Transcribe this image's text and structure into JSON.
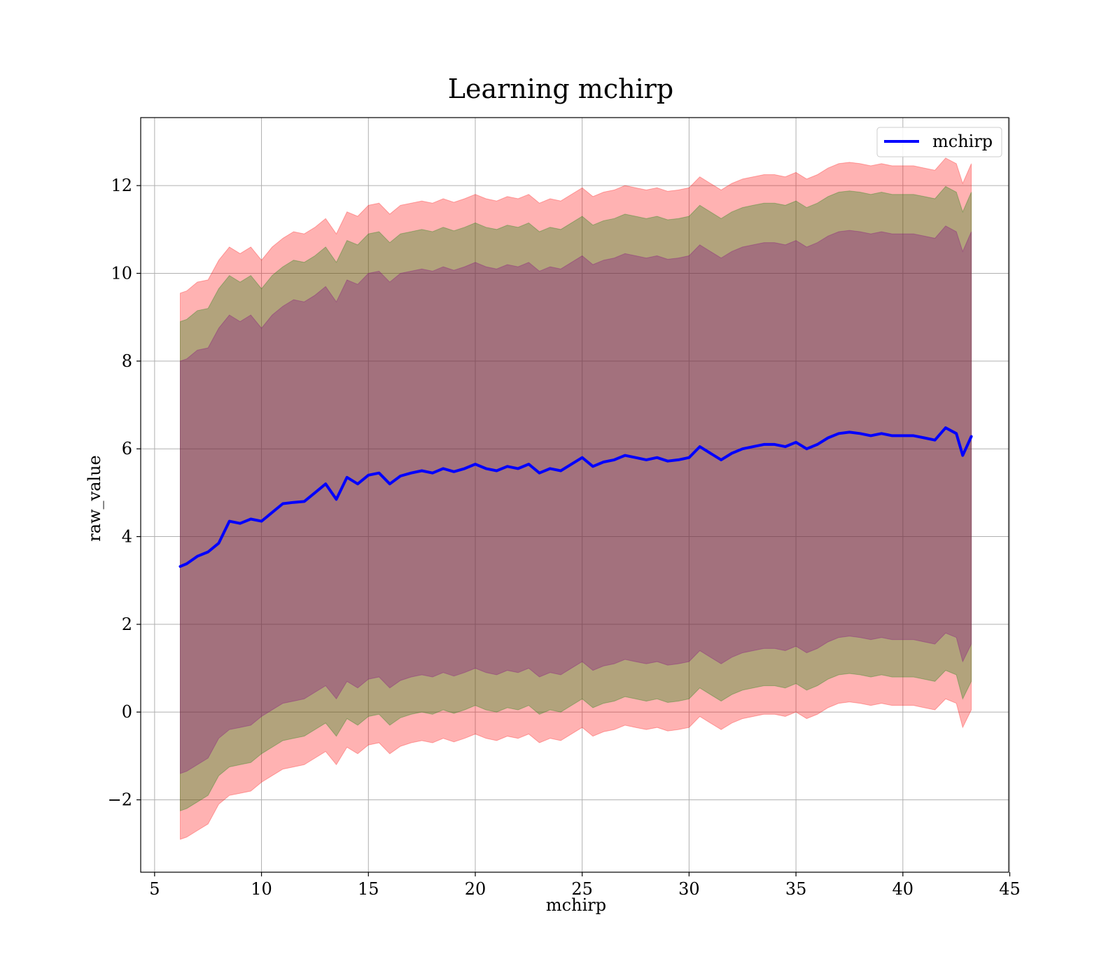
{
  "chart_data": {
    "type": "line",
    "title": "Learning mchirp",
    "xlabel": "mchirp",
    "ylabel": "raw_value",
    "xlim": [
      4.35,
      44.95
    ],
    "ylim": [
      -3.65,
      13.55
    ],
    "xticks": [
      5,
      10,
      15,
      20,
      25,
      30,
      35,
      40,
      45
    ],
    "yticks": [
      -2,
      0,
      2,
      4,
      6,
      8,
      10,
      12
    ],
    "ytick_labels": [
      "−2",
      "0",
      "2",
      "4",
      "6",
      "8",
      "10",
      "12"
    ],
    "grid": true,
    "legend_position": "top-right",
    "x": [
      6.2,
      6.5,
      7.0,
      7.5,
      8.0,
      8.5,
      9.0,
      9.5,
      10.0,
      10.5,
      11.0,
      11.5,
      12.0,
      12.5,
      13.0,
      13.5,
      14.0,
      14.5,
      15.0,
      15.5,
      16.0,
      16.5,
      17.0,
      17.5,
      18.0,
      18.5,
      19.0,
      19.5,
      20.0,
      20.5,
      21.0,
      21.5,
      22.0,
      22.5,
      23.0,
      23.5,
      24.0,
      24.5,
      25.0,
      25.5,
      26.0,
      26.5,
      27.0,
      27.5,
      28.0,
      28.5,
      29.0,
      29.5,
      30.0,
      30.5,
      31.0,
      31.5,
      32.0,
      32.5,
      33.0,
      33.5,
      34.0,
      34.5,
      35.0,
      35.5,
      36.0,
      36.5,
      37.0,
      37.5,
      38.0,
      38.5,
      39.0,
      39.5,
      40.0,
      40.5,
      41.0,
      41.5,
      42.0,
      42.5,
      42.8,
      43.2
    ],
    "series": [
      {
        "name": "mchirp",
        "color": "#0000ff",
        "values": [
          3.32,
          3.38,
          3.55,
          3.65,
          3.85,
          4.35,
          4.3,
          4.4,
          4.35,
          4.55,
          4.75,
          4.78,
          4.8,
          5.0,
          5.2,
          4.85,
          5.35,
          5.2,
          5.4,
          5.45,
          5.2,
          5.38,
          5.45,
          5.5,
          5.45,
          5.55,
          5.48,
          5.55,
          5.65,
          5.55,
          5.5,
          5.6,
          5.55,
          5.65,
          5.45,
          5.55,
          5.5,
          5.65,
          5.8,
          5.6,
          5.7,
          5.75,
          5.85,
          5.8,
          5.75,
          5.8,
          5.72,
          5.75,
          5.8,
          6.05,
          5.9,
          5.75,
          5.9,
          6.0,
          6.05,
          6.1,
          6.1,
          6.05,
          6.15,
          6.0,
          6.1,
          6.25,
          6.35,
          6.38,
          6.35,
          6.3,
          6.35,
          6.3,
          6.3,
          6.3,
          6.25,
          6.2,
          6.48,
          6.35,
          5.85,
          6.28
        ]
      }
    ],
    "bands": [
      {
        "color": "#ff0000",
        "opacity": 0.3,
        "lower": [
          -2.9,
          -2.85,
          -2.7,
          -2.55,
          -2.1,
          -1.9,
          -1.85,
          -1.8,
          -1.6,
          -1.45,
          -1.3,
          -1.25,
          -1.2,
          -1.05,
          -0.9,
          -1.2,
          -0.8,
          -0.95,
          -0.75,
          -0.7,
          -0.95,
          -0.78,
          -0.7,
          -0.65,
          -0.7,
          -0.6,
          -0.68,
          -0.6,
          -0.5,
          -0.6,
          -0.65,
          -0.55,
          -0.6,
          -0.5,
          -0.7,
          -0.6,
          -0.65,
          -0.5,
          -0.35,
          -0.55,
          -0.45,
          -0.4,
          -0.3,
          -0.35,
          -0.4,
          -0.35,
          -0.43,
          -0.4,
          -0.35,
          -0.1,
          -0.25,
          -0.4,
          -0.25,
          -0.15,
          -0.1,
          -0.05,
          -0.05,
          -0.1,
          0.0,
          -0.15,
          -0.05,
          0.1,
          0.2,
          0.23,
          0.2,
          0.15,
          0.2,
          0.15,
          0.15,
          0.15,
          0.1,
          0.05,
          0.3,
          0.2,
          -0.35,
          0.05
        ],
        "upper": [
          9.55,
          9.6,
          9.8,
          9.85,
          10.3,
          10.6,
          10.45,
          10.6,
          10.3,
          10.6,
          10.8,
          10.95,
          10.9,
          11.05,
          11.25,
          10.9,
          11.4,
          11.3,
          11.55,
          11.6,
          11.35,
          11.55,
          11.6,
          11.65,
          11.6,
          11.7,
          11.62,
          11.7,
          11.8,
          11.7,
          11.65,
          11.75,
          11.7,
          11.8,
          11.6,
          11.7,
          11.65,
          11.8,
          11.95,
          11.75,
          11.85,
          11.9,
          12.0,
          11.95,
          11.9,
          11.95,
          11.87,
          11.9,
          11.95,
          12.2,
          12.05,
          11.9,
          12.05,
          12.15,
          12.2,
          12.25,
          12.25,
          12.2,
          12.3,
          12.15,
          12.25,
          12.4,
          12.5,
          12.53,
          12.5,
          12.45,
          12.5,
          12.45,
          12.45,
          12.45,
          12.4,
          12.35,
          12.63,
          12.5,
          12.05,
          12.5
        ]
      },
      {
        "color": "#008000",
        "opacity": 0.3,
        "lower": [
          -2.25,
          -2.2,
          -2.05,
          -1.9,
          -1.45,
          -1.25,
          -1.2,
          -1.15,
          -0.95,
          -0.8,
          -0.65,
          -0.6,
          -0.55,
          -0.4,
          -0.25,
          -0.55,
          -0.15,
          -0.3,
          -0.1,
          -0.05,
          -0.3,
          -0.13,
          -0.05,
          0.0,
          -0.05,
          0.05,
          -0.03,
          0.05,
          0.15,
          0.05,
          0.0,
          0.1,
          0.05,
          0.15,
          -0.05,
          0.05,
          0.0,
          0.15,
          0.3,
          0.1,
          0.2,
          0.25,
          0.35,
          0.3,
          0.25,
          0.3,
          0.22,
          0.25,
          0.3,
          0.55,
          0.4,
          0.25,
          0.4,
          0.5,
          0.55,
          0.6,
          0.6,
          0.55,
          0.65,
          0.5,
          0.6,
          0.75,
          0.85,
          0.88,
          0.85,
          0.8,
          0.85,
          0.8,
          0.8,
          0.8,
          0.75,
          0.7,
          0.95,
          0.85,
          0.3,
          0.7
        ],
        "upper": [
          8.9,
          8.95,
          9.15,
          9.2,
          9.65,
          9.95,
          9.8,
          9.95,
          9.65,
          9.95,
          10.15,
          10.3,
          10.25,
          10.4,
          10.6,
          10.25,
          10.75,
          10.65,
          10.9,
          10.95,
          10.7,
          10.9,
          10.95,
          11.0,
          10.95,
          11.05,
          10.97,
          11.05,
          11.15,
          11.05,
          11.0,
          11.1,
          11.05,
          11.15,
          10.95,
          11.05,
          11.0,
          11.15,
          11.3,
          11.1,
          11.2,
          11.25,
          11.35,
          11.3,
          11.25,
          11.3,
          11.22,
          11.25,
          11.3,
          11.55,
          11.4,
          11.25,
          11.4,
          11.5,
          11.55,
          11.6,
          11.6,
          11.55,
          11.65,
          11.5,
          11.6,
          11.75,
          11.85,
          11.88,
          11.85,
          11.8,
          11.85,
          11.8,
          11.8,
          11.8,
          11.75,
          11.7,
          11.98,
          11.85,
          11.4,
          11.85
        ]
      },
      {
        "color": "#800080",
        "opacity": 0.3,
        "lower": [
          -1.4,
          -1.35,
          -1.2,
          -1.05,
          -0.6,
          -0.4,
          -0.35,
          -0.3,
          -0.1,
          0.05,
          0.2,
          0.25,
          0.3,
          0.45,
          0.6,
          0.3,
          0.7,
          0.55,
          0.75,
          0.8,
          0.55,
          0.72,
          0.8,
          0.85,
          0.8,
          0.9,
          0.82,
          0.9,
          1.0,
          0.9,
          0.85,
          0.95,
          0.9,
          1.0,
          0.8,
          0.9,
          0.85,
          1.0,
          1.15,
          0.95,
          1.05,
          1.1,
          1.2,
          1.15,
          1.1,
          1.15,
          1.07,
          1.1,
          1.15,
          1.4,
          1.25,
          1.1,
          1.25,
          1.35,
          1.4,
          1.45,
          1.45,
          1.4,
          1.5,
          1.35,
          1.45,
          1.6,
          1.7,
          1.73,
          1.7,
          1.65,
          1.7,
          1.65,
          1.65,
          1.65,
          1.6,
          1.55,
          1.8,
          1.7,
          1.15,
          1.55
        ],
        "upper": [
          8.0,
          8.05,
          8.25,
          8.3,
          8.75,
          9.05,
          8.9,
          9.05,
          8.75,
          9.05,
          9.25,
          9.4,
          9.35,
          9.5,
          9.7,
          9.35,
          9.85,
          9.75,
          10.0,
          10.05,
          9.8,
          10.0,
          10.05,
          10.1,
          10.05,
          10.15,
          10.07,
          10.15,
          10.25,
          10.15,
          10.1,
          10.2,
          10.15,
          10.25,
          10.05,
          10.15,
          10.1,
          10.25,
          10.4,
          10.2,
          10.3,
          10.35,
          10.45,
          10.4,
          10.35,
          10.4,
          10.32,
          10.35,
          10.4,
          10.65,
          10.5,
          10.35,
          10.5,
          10.6,
          10.65,
          10.7,
          10.7,
          10.65,
          10.75,
          10.6,
          10.7,
          10.85,
          10.95,
          10.98,
          10.95,
          10.9,
          10.95,
          10.9,
          10.9,
          10.9,
          10.85,
          10.8,
          11.08,
          10.95,
          10.5,
          10.95
        ]
      }
    ]
  }
}
